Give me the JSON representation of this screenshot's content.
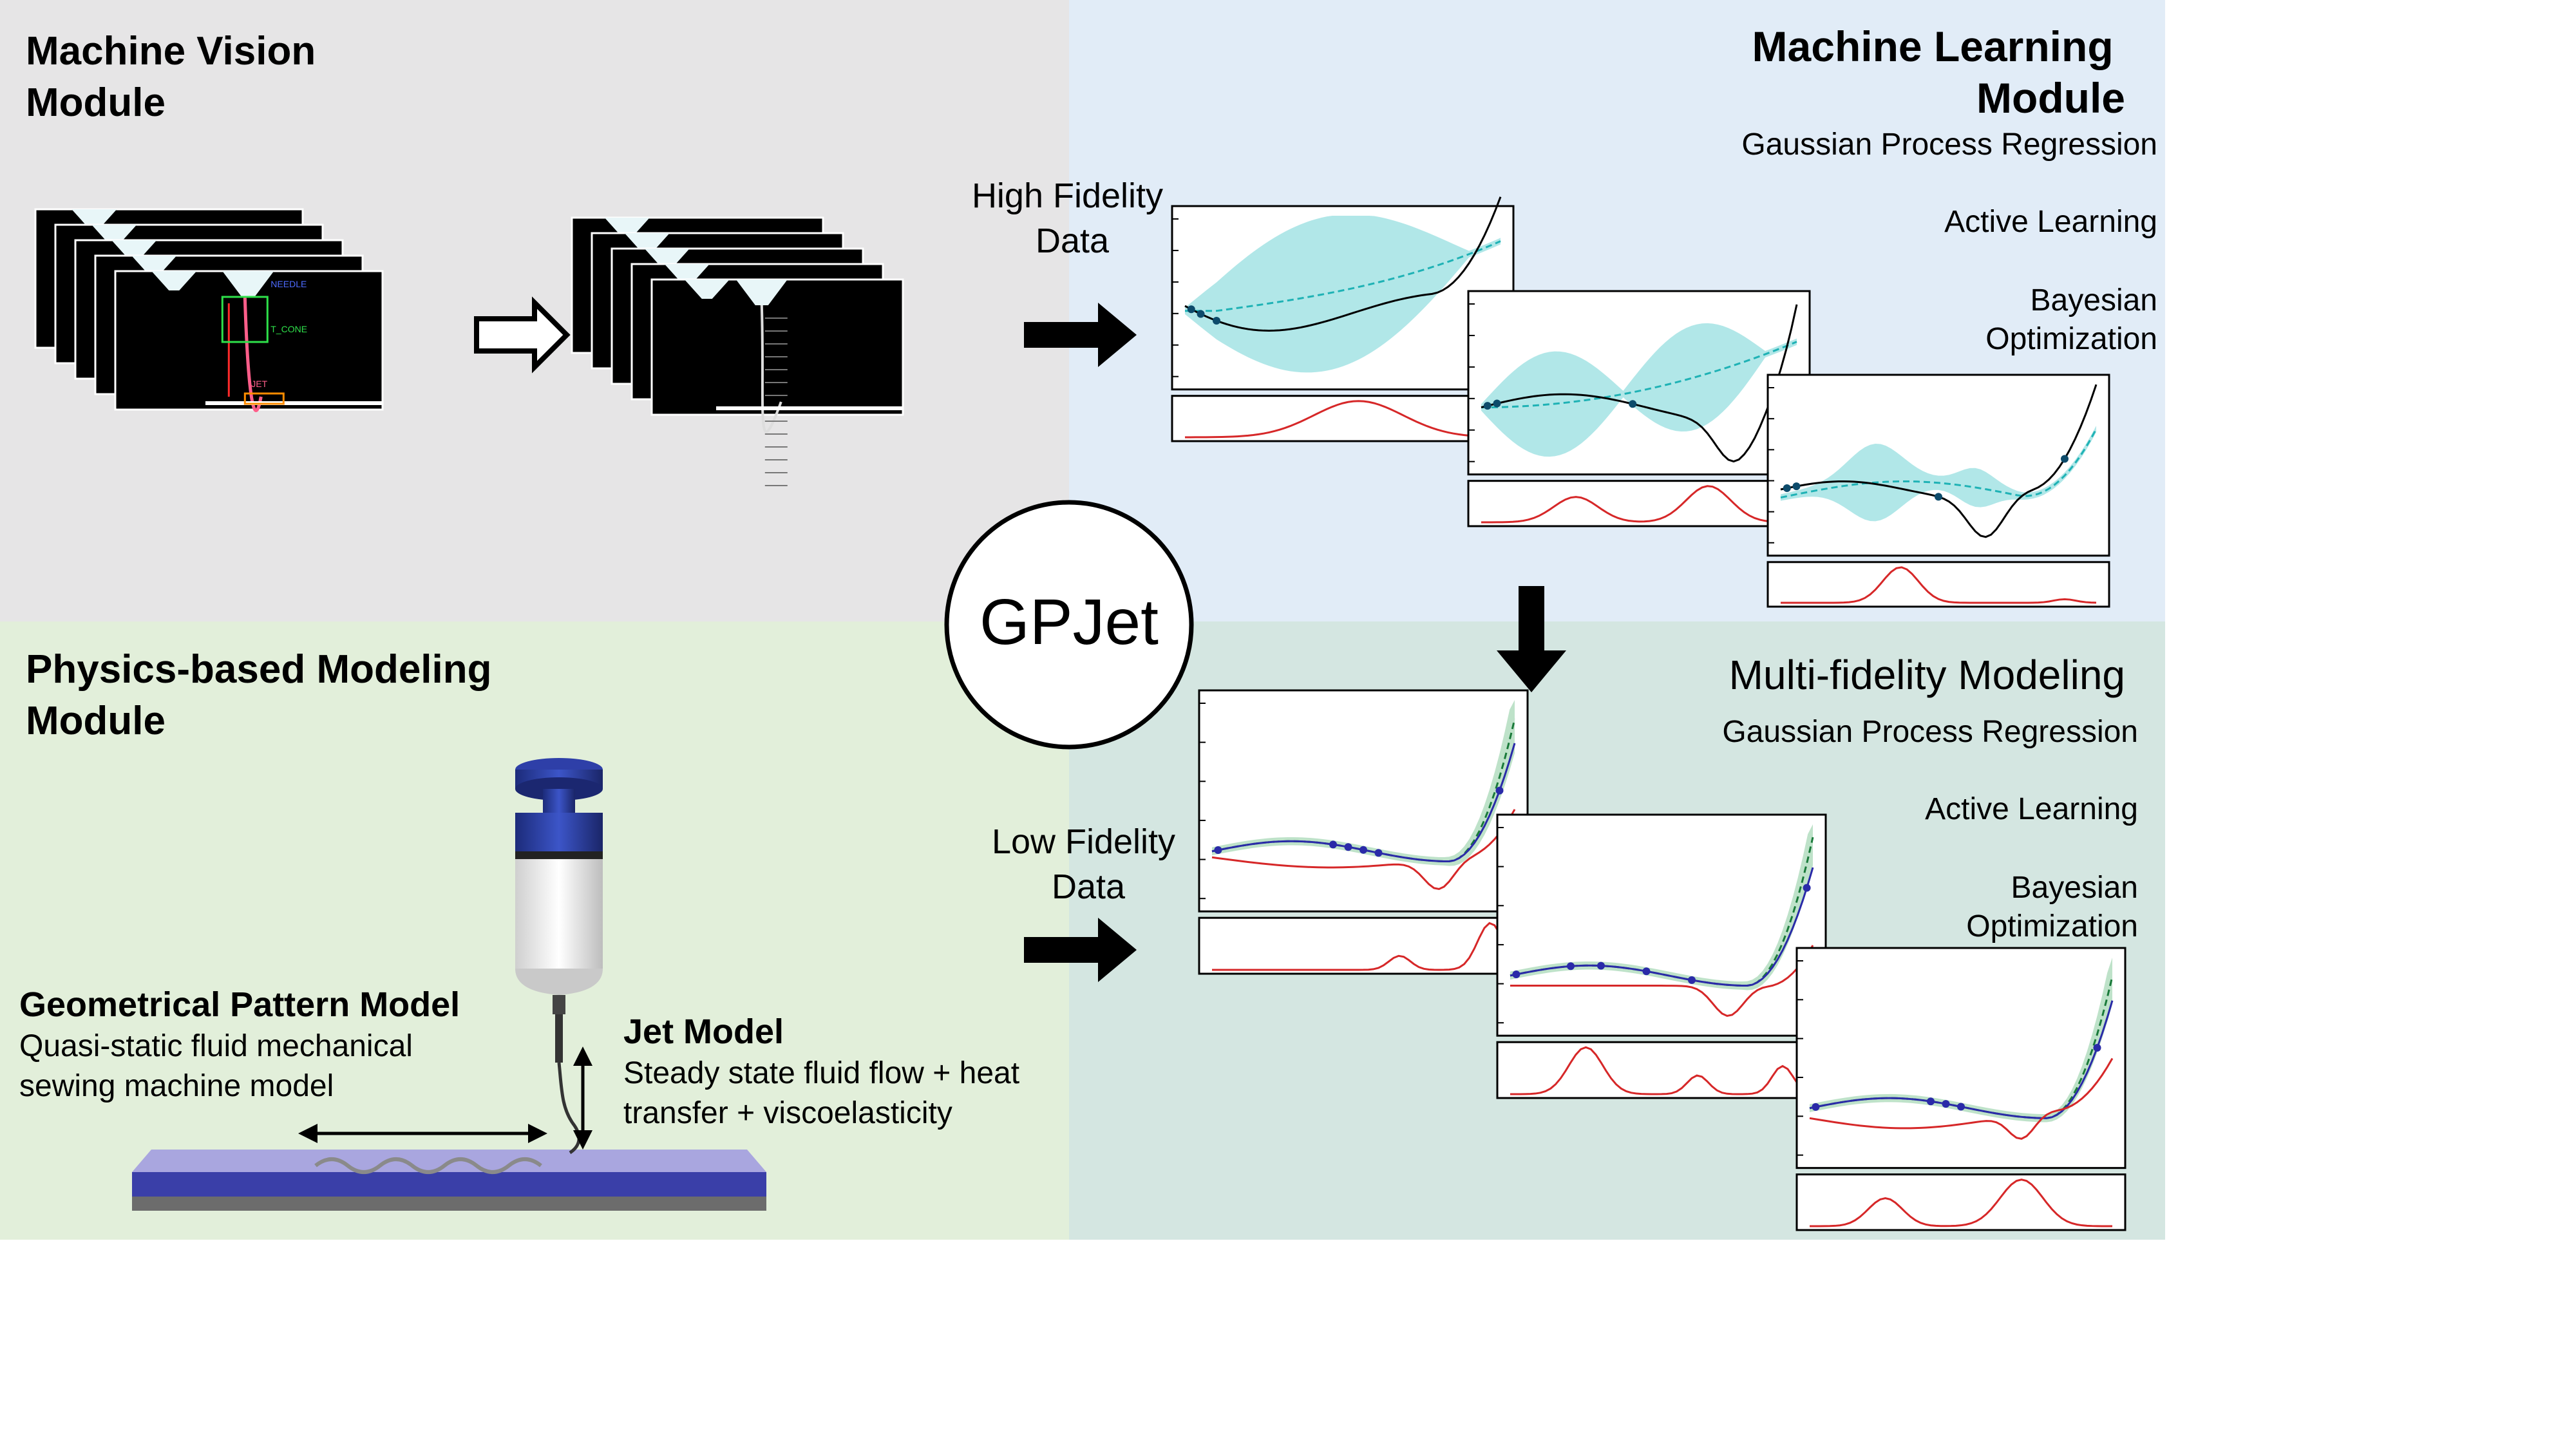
{
  "center_label": "GPJet",
  "machine_vision": {
    "title_lines": [
      "Machine Vision",
      "Module"
    ],
    "overlay_labels": [
      "NEEDLE",
      "T_CONE",
      "JET"
    ]
  },
  "physics": {
    "title_lines": [
      "Physics-based Modeling",
      "Module"
    ],
    "geo_title": "Geometrical Pattern Model",
    "geo_desc_lines": [
      "Quasi-static fluid mechanical",
      "sewing machine model"
    ],
    "jet_title": "Jet Model",
    "jet_desc_lines": [
      "Steady state fluid flow + heat",
      "transfer + viscoelasticity"
    ]
  },
  "machine_learning": {
    "title_lines": [
      "Machine Learning",
      "Module"
    ],
    "items": [
      "Gaussian Process Regression",
      "Active Learning",
      "Bayesian",
      "Optimization"
    ]
  },
  "multi_fidelity": {
    "title": "Multi-fidelity Modeling",
    "items": [
      "Gaussian Process Regression",
      "Active Learning",
      "Bayesian",
      "Optimization"
    ]
  },
  "high_fidelity_label_lines": [
    "High Fidelity",
    "Data"
  ],
  "low_fidelity_label_lines": [
    "Low Fidelity",
    "Data"
  ],
  "colors": {
    "vision_bg": "#e6e5e6",
    "ml_bg": "#e1ecf7",
    "physics_bg": "#e2efda",
    "mf_bg": "#d4e6e1",
    "gp_band": "#a8e4e6",
    "gp_mean": "#1fb2b5",
    "acquisition": "#d62728",
    "mf_band": "#b7dfc3",
    "mf_high": "#2a2aa8"
  }
}
